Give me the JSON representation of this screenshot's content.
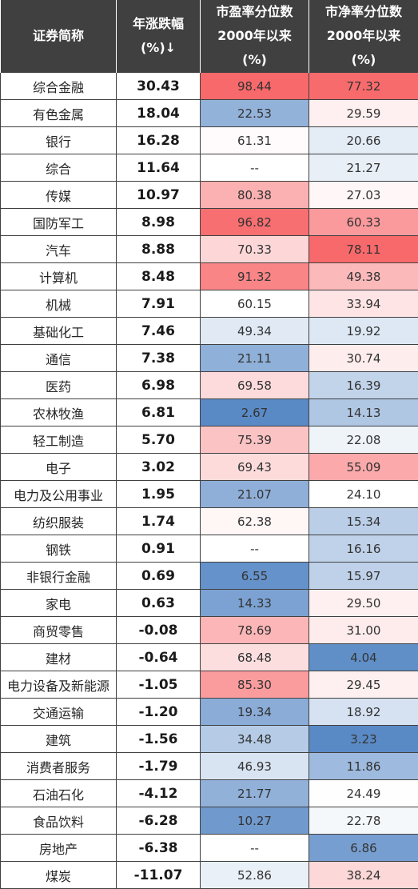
{
  "headers": {
    "name": [
      "证券简称"
    ],
    "change": [
      "年涨跌幅",
      "(%)↓"
    ],
    "pe": [
      "市盈率分位数",
      "2000年以来",
      "(%)"
    ],
    "pb": [
      "市净率分位数",
      "2000年以来",
      "(%)"
    ]
  },
  "colors": {
    "header_bg": "#404040",
    "high": "#f8696b",
    "mid": "#ffffff",
    "low": "#5a8ac6"
  },
  "rows": [
    {
      "name": "综合金融",
      "change": "30.43",
      "pe": "98.44",
      "pb": "77.32"
    },
    {
      "name": "有色金属",
      "change": "18.04",
      "pe": "22.53",
      "pb": "29.59"
    },
    {
      "name": "银行",
      "change": "16.28",
      "pe": "61.31",
      "pb": "20.66"
    },
    {
      "name": "综合",
      "change": "11.64",
      "pe": "--",
      "pb": "21.27"
    },
    {
      "name": "传媒",
      "change": "10.97",
      "pe": "80.38",
      "pb": "27.03"
    },
    {
      "name": "国防军工",
      "change": "8.98",
      "pe": "96.82",
      "pb": "60.33"
    },
    {
      "name": "汽车",
      "change": "8.88",
      "pe": "70.33",
      "pb": "78.11"
    },
    {
      "name": "计算机",
      "change": "8.48",
      "pe": "91.32",
      "pb": "49.38"
    },
    {
      "name": "机械",
      "change": "7.91",
      "pe": "60.15",
      "pb": "33.94"
    },
    {
      "name": "基础化工",
      "change": "7.46",
      "pe": "49.34",
      "pb": "19.92"
    },
    {
      "name": "通信",
      "change": "7.38",
      "pe": "21.11",
      "pb": "30.74"
    },
    {
      "name": "医药",
      "change": "6.98",
      "pe": "69.58",
      "pb": "16.39"
    },
    {
      "name": "农林牧渔",
      "change": "6.81",
      "pe": "2.67",
      "pb": "14.13"
    },
    {
      "name": "轻工制造",
      "change": "5.70",
      "pe": "75.39",
      "pb": "22.08"
    },
    {
      "name": "电子",
      "change": "3.02",
      "pe": "69.43",
      "pb": "55.09"
    },
    {
      "name": "电力及公用事业",
      "change": "1.95",
      "pe": "21.07",
      "pb": "24.10"
    },
    {
      "name": "纺织服装",
      "change": "1.74",
      "pe": "62.38",
      "pb": "15.34"
    },
    {
      "name": "钢铁",
      "change": "0.91",
      "pe": "--",
      "pb": "16.16"
    },
    {
      "name": "非银行金融",
      "change": "0.69",
      "pe": "6.55",
      "pb": "15.97"
    },
    {
      "name": "家电",
      "change": "0.63",
      "pe": "14.33",
      "pb": "29.50"
    },
    {
      "name": "商贸零售",
      "change": "-0.08",
      "pe": "78.69",
      "pb": "31.00"
    },
    {
      "name": "建材",
      "change": "-0.64",
      "pe": "68.48",
      "pb": "4.04"
    },
    {
      "name": "电力设备及新能源",
      "change": "-1.05",
      "pe": "85.30",
      "pb": "29.45"
    },
    {
      "name": "交通运输",
      "change": "-1.20",
      "pe": "19.34",
      "pb": "18.92"
    },
    {
      "name": "建筑",
      "change": "-1.56",
      "pe": "34.48",
      "pb": "3.23"
    },
    {
      "name": "消费者服务",
      "change": "-1.79",
      "pe": "46.93",
      "pb": "11.86"
    },
    {
      "name": "石油石化",
      "change": "-4.12",
      "pe": "21.77",
      "pb": "24.49"
    },
    {
      "name": "食品饮料",
      "change": "-6.28",
      "pe": "10.27",
      "pb": "22.78"
    },
    {
      "name": "房地产",
      "change": "-6.38",
      "pe": "--",
      "pb": "6.86"
    },
    {
      "name": "煤炭",
      "change": "-11.07",
      "pe": "52.86",
      "pb": "38.24"
    }
  ]
}
